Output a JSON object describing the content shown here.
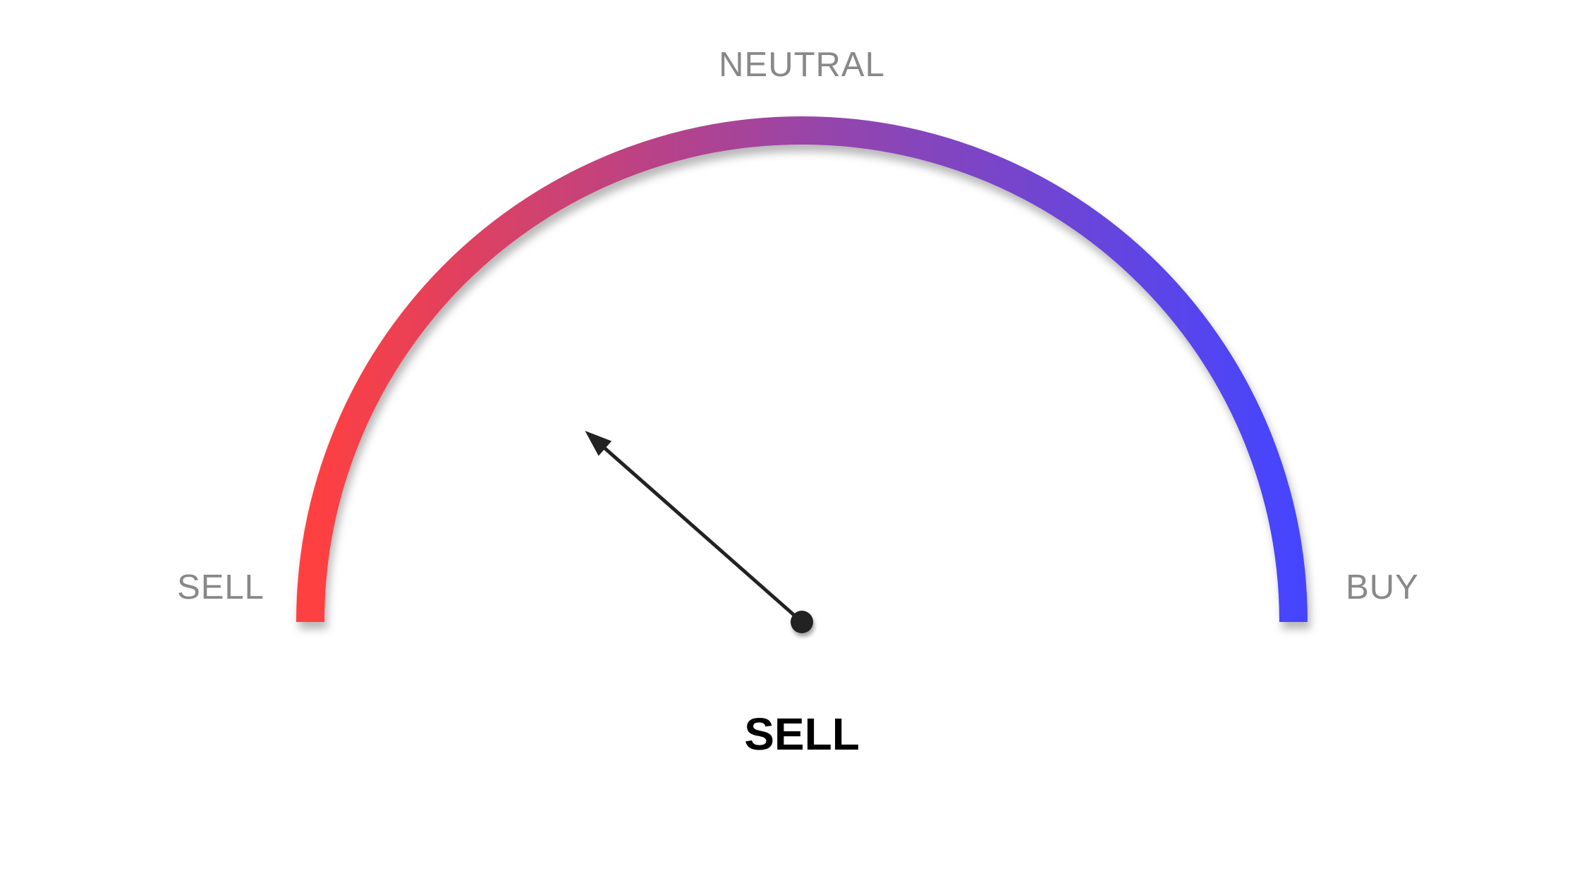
{
  "gauge": {
    "labels": {
      "left": "SELL",
      "top": "NEUTRAL",
      "right": "BUY"
    },
    "result": "SELL",
    "colors": {
      "sell": "#ff4040",
      "neutral": "#9a44a6",
      "buy": "#4545ff",
      "needle": "#222222",
      "label": "#888888",
      "result": "#000000"
    }
  },
  "chart_data": {
    "type": "gauge",
    "scale": [
      "SELL",
      "NEUTRAL",
      "BUY"
    ],
    "range": [
      -1,
      1
    ],
    "value": -0.54,
    "reading": "SELL"
  }
}
